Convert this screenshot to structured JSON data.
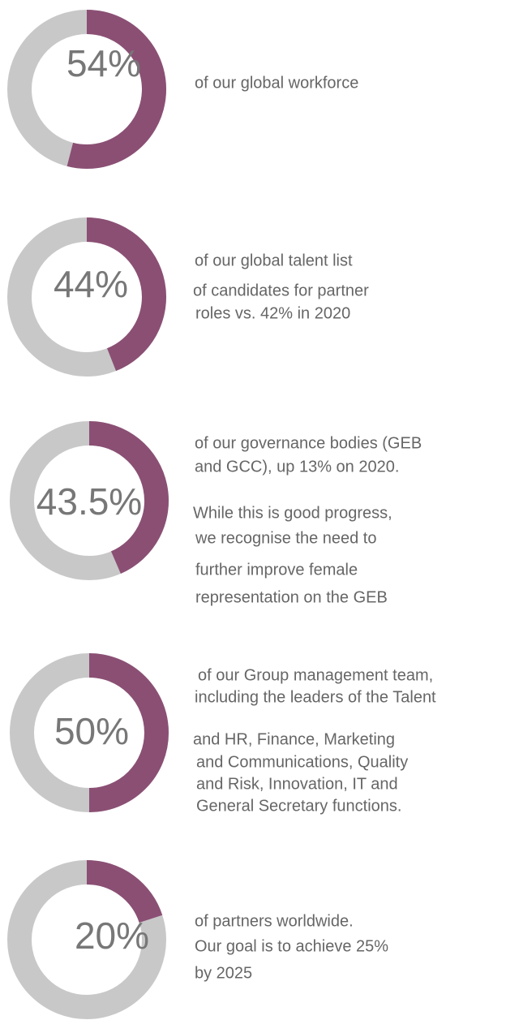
{
  "chart_data": [
    {
      "type": "donut",
      "values": [
        54
      ],
      "value_labels": [
        "54%"
      ],
      "color": "#8b4f74",
      "track_color": "#c8c8c8",
      "text": [
        "of our global workforce"
      ]
    },
    {
      "type": "donut",
      "values": [
        44
      ],
      "value_labels": [
        "44%"
      ],
      "color": "#8b4f74",
      "track_color": "#c8c8c8",
      "text": [
        "of our global talent list",
        "of candidates for partner",
        "roles vs. 42% in 2020"
      ]
    },
    {
      "type": "donut",
      "values": [
        43.5
      ],
      "value_labels": [
        "43.5%"
      ],
      "color": "#8b4f74",
      "track_color": "#c8c8c8",
      "text": [
        "of our governance bodies (GEB",
        "and GCC), up 13% on 2020.",
        "While this is good progress,",
        "we recognise the need to",
        "further improve female",
        "representation on the GEB"
      ]
    },
    {
      "type": "donut",
      "values": [
        50
      ],
      "value_labels": [
        "50%"
      ],
      "color": "#8b4f74",
      "track_color": "#c8c8c8",
      "text": [
        "of our Group management team,",
        "including the leaders of the Talent",
        "and HR, Finance, Marketing",
        "and Communications, Quality",
        "and Risk, Innovation, IT and",
        "General Secretary functions."
      ]
    },
    {
      "type": "donut",
      "values": [
        20
      ],
      "value_labels": [
        "20%"
      ],
      "color": "#8b4f74",
      "track_color": "#c8c8c8",
      "text": [
        "of partners worldwide.",
        "Our goal is to achieve 25%",
        "by 2025"
      ]
    }
  ]
}
